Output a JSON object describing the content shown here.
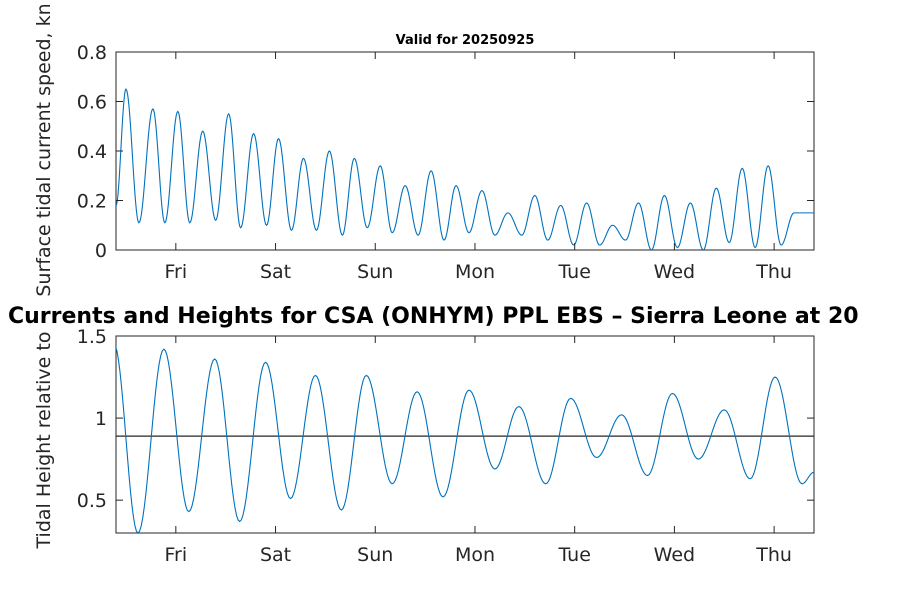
{
  "chart_data": [
    {
      "type": "line",
      "title": "Valid for 20250925",
      "ylabel": "Surface tidal current speed, kn",
      "xlim": [
        0,
        7
      ],
      "ylim": [
        0,
        0.8
      ],
      "yticks": [
        "0",
        "0.2",
        "0.4",
        "0.6",
        "0.8"
      ],
      "ytick_values": [
        0,
        0.2,
        0.4,
        0.6,
        0.8
      ],
      "xtick_labels": [
        "Fri",
        "Sat",
        "Sun",
        "Mon",
        "Tue",
        "Wed",
        "Thu"
      ],
      "xtick_values": [
        0.6,
        1.6,
        2.6,
        3.6,
        4.6,
        5.6,
        6.6
      ],
      "grid": false,
      "series": [
        {
          "color": "#0072BD",
          "peaks_x": [
            0.1,
            0.37,
            0.62,
            0.87,
            1.13,
            1.38,
            1.63,
            1.88,
            2.14,
            2.39,
            2.65,
            2.9,
            3.16,
            3.41,
            3.67,
            3.93,
            4.2,
            4.46,
            4.72,
            4.98,
            5.24,
            5.5,
            5.76,
            6.02,
            6.28,
            6.54,
            6.8,
            7.0
          ],
          "peaks_y": [
            0.65,
            0.57,
            0.56,
            0.48,
            0.55,
            0.47,
            0.45,
            0.37,
            0.4,
            0.37,
            0.34,
            0.26,
            0.32,
            0.26,
            0.24,
            0.15,
            0.22,
            0.18,
            0.19,
            0.1,
            0.19,
            0.22,
            0.19,
            0.25,
            0.33,
            0.34,
            0.15,
            0.15
          ],
          "troughs_x": [
            0.0,
            0.23,
            0.49,
            0.74,
            1.0,
            1.25,
            1.51,
            1.76,
            2.01,
            2.27,
            2.52,
            2.77,
            3.03,
            3.29,
            3.54,
            3.8,
            4.07,
            4.33,
            4.59,
            4.85,
            5.11,
            5.37,
            5.63,
            5.89,
            6.15,
            6.41,
            6.67,
            6.93
          ],
          "troughs_y": [
            0.18,
            0.11,
            0.11,
            0.11,
            0.12,
            0.09,
            0.1,
            0.08,
            0.08,
            0.06,
            0.09,
            0.07,
            0.06,
            0.04,
            0.07,
            0.06,
            0.06,
            0.04,
            0.02,
            0.02,
            0.04,
            0.0,
            0.01,
            0.0,
            0.03,
            0.01,
            0.02,
            0.15
          ]
        }
      ]
    },
    {
      "type": "line",
      "title": "Currents and Heights for CSA (ONHYM) PPL EBS  – Sierra Leone at 20",
      "ylabel": "Tidal Height relative to",
      "xlim": [
        0,
        7
      ],
      "ylim": [
        0.3,
        1.5
      ],
      "yticks": [
        "0.5",
        "1",
        "1.5"
      ],
      "ytick_values": [
        0.5,
        1.0,
        1.5
      ],
      "xtick_labels": [
        "Fri",
        "Sat",
        "Sun",
        "Mon",
        "Tue",
        "Wed",
        "Thu"
      ],
      "xtick_values": [
        0.6,
        1.6,
        2.6,
        3.6,
        4.6,
        5.6,
        6.6
      ],
      "reference_line": 0.89,
      "grid": false,
      "series": [
        {
          "color": "#0072BD",
          "peaks_x": [
            -0.02,
            0.48,
            0.99,
            1.5,
            2.0,
            2.51,
            3.02,
            3.54,
            4.04,
            4.56,
            5.07,
            5.58,
            6.1,
            6.61
          ],
          "peaks_y": [
            1.45,
            1.42,
            1.36,
            1.34,
            1.26,
            1.26,
            1.16,
            1.17,
            1.07,
            1.12,
            1.02,
            1.15,
            1.05,
            1.25
          ],
          "troughs_x": [
            0.22,
            0.73,
            1.24,
            1.75,
            2.26,
            2.77,
            3.28,
            3.8,
            4.31,
            4.82,
            5.33,
            5.84,
            6.36,
            6.88
          ],
          "troughs_y": [
            0.3,
            0.43,
            0.37,
            0.51,
            0.44,
            0.6,
            0.52,
            0.69,
            0.6,
            0.76,
            0.65,
            0.75,
            0.63,
            0.6
          ],
          "end": [
            7.0,
            0.67
          ]
        }
      ]
    }
  ]
}
